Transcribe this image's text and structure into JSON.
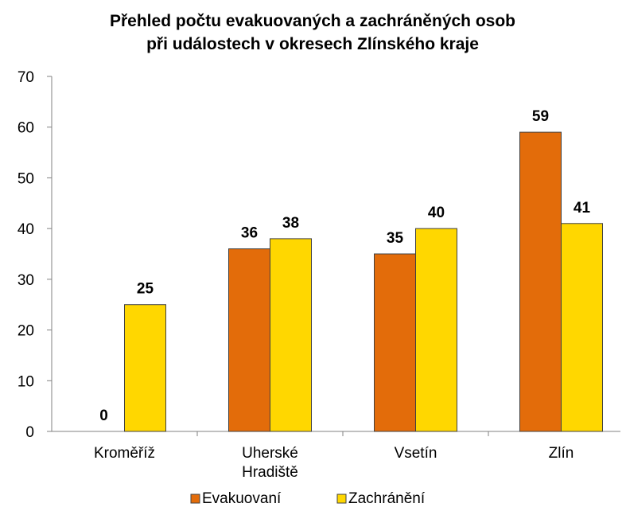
{
  "chart_data": {
    "type": "bar",
    "title": "Přehled počtu evakuovaných a zachráněných osob",
    "subtitle": "při událostech v okresech Zlínského kraje",
    "categories": [
      "Kroměříž",
      "Uherské Hradiště",
      "Vsetín",
      "Zlín"
    ],
    "series": [
      {
        "name": "Evakuovaní",
        "color": "#e36c0a",
        "values": [
          0,
          36,
          35,
          59
        ]
      },
      {
        "name": "Zachránění",
        "color": "#ffd700",
        "values": [
          25,
          38,
          40,
          41
        ]
      }
    ],
    "ylim": [
      0,
      70
    ],
    "yticks": [
      0,
      10,
      20,
      30,
      40,
      50,
      60,
      70
    ],
    "grid": false,
    "legend": "bottom"
  }
}
